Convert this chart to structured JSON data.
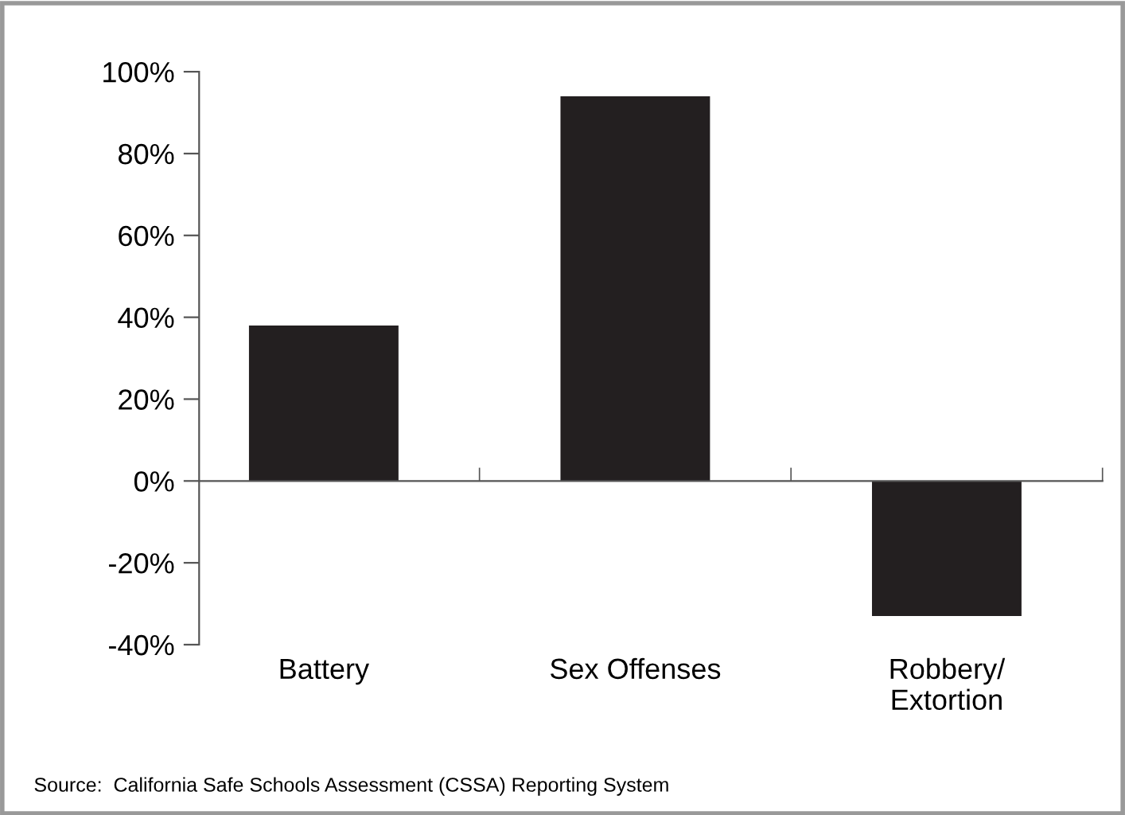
{
  "chart_data": {
    "type": "bar",
    "categories": [
      "Battery",
      "Sex Offenses",
      "Robbery/\nExtortion"
    ],
    "values": [
      38,
      94,
      -33
    ],
    "color": "#231f20",
    "ylim": [
      -40,
      100
    ],
    "yticks": [
      {
        "value": -40,
        "label": "-40%"
      },
      {
        "value": -20,
        "label": "-20%"
      },
      {
        "value": 0,
        "label": "0%"
      },
      {
        "value": 20,
        "label": "20%"
      },
      {
        "value": 40,
        "label": "40%"
      },
      {
        "value": 60,
        "label": "60%"
      },
      {
        "value": 80,
        "label": "80%"
      },
      {
        "value": 100,
        "label": "100%"
      }
    ],
    "annotations": [
      "Source:  California Safe Schools Assessment (CSSA) Reporting System"
    ]
  }
}
